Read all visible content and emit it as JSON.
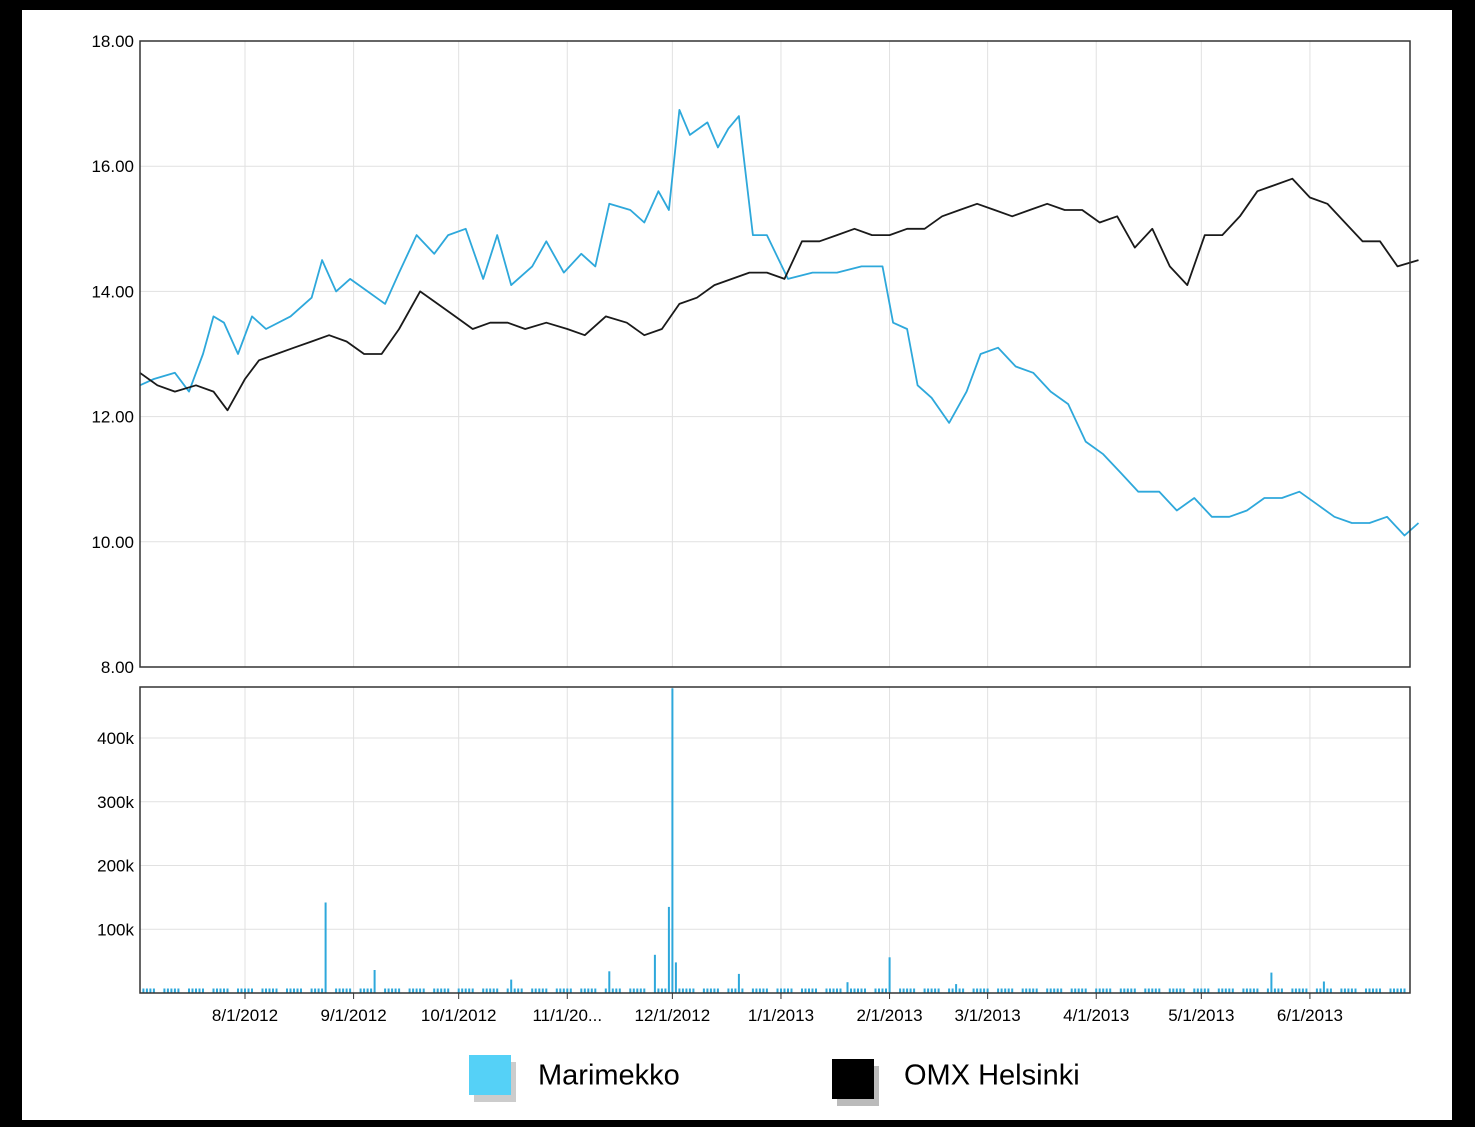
{
  "chart_data": [
    {
      "type": "line",
      "title": "",
      "xlabel": "",
      "ylabel": "",
      "ylim": [
        8,
        18
      ],
      "y_ticks": [
        "8.00",
        "10.00",
        "12.00",
        "14.00",
        "16.00",
        "18.00"
      ],
      "grid": true,
      "series": [
        {
          "name": "Marimekko",
          "color": "#2ea8db",
          "points": [
            [
              "2012-07-02",
              12.5
            ],
            [
              "2012-07-06",
              12.6
            ],
            [
              "2012-07-12",
              12.7
            ],
            [
              "2012-07-16",
              12.4
            ],
            [
              "2012-07-20",
              13.0
            ],
            [
              "2012-07-23",
              13.6
            ],
            [
              "2012-07-26",
              13.5
            ],
            [
              "2012-07-30",
              13.0
            ],
            [
              "2012-08-03",
              13.6
            ],
            [
              "2012-08-07",
              13.4
            ],
            [
              "2012-08-14",
              13.6
            ],
            [
              "2012-08-20",
              13.9
            ],
            [
              "2012-08-23",
              14.5
            ],
            [
              "2012-08-27",
              14.0
            ],
            [
              "2012-08-31",
              14.2
            ],
            [
              "2012-09-05",
              14.0
            ],
            [
              "2012-09-10",
              13.8
            ],
            [
              "2012-09-14",
              14.3
            ],
            [
              "2012-09-19",
              14.9
            ],
            [
              "2012-09-24",
              14.6
            ],
            [
              "2012-09-28",
              14.9
            ],
            [
              "2012-10-03",
              15.0
            ],
            [
              "2012-10-08",
              14.2
            ],
            [
              "2012-10-12",
              14.9
            ],
            [
              "2012-10-16",
              14.1
            ],
            [
              "2012-10-22",
              14.4
            ],
            [
              "2012-10-26",
              14.8
            ],
            [
              "2012-10-31",
              14.3
            ],
            [
              "2012-11-05",
              14.6
            ],
            [
              "2012-11-09",
              14.4
            ],
            [
              "2012-11-13",
              15.4
            ],
            [
              "2012-11-19",
              15.3
            ],
            [
              "2012-11-23",
              15.1
            ],
            [
              "2012-11-27",
              15.6
            ],
            [
              "2012-11-30",
              15.3
            ],
            [
              "2012-12-03",
              16.9
            ],
            [
              "2012-12-06",
              16.5
            ],
            [
              "2012-12-11",
              16.7
            ],
            [
              "2012-12-14",
              16.3
            ],
            [
              "2012-12-17",
              16.6
            ],
            [
              "2012-12-20",
              16.8
            ],
            [
              "2012-12-24",
              14.9
            ],
            [
              "2012-12-28",
              14.9
            ],
            [
              "2013-01-03",
              14.2
            ],
            [
              "2013-01-10",
              14.3
            ],
            [
              "2013-01-17",
              14.3
            ],
            [
              "2013-01-24",
              14.4
            ],
            [
              "2013-01-30",
              14.4
            ],
            [
              "2013-02-02",
              13.5
            ],
            [
              "2013-02-06",
              13.4
            ],
            [
              "2013-02-09",
              12.5
            ],
            [
              "2013-02-13",
              12.3
            ],
            [
              "2013-02-18",
              11.9
            ],
            [
              "2013-02-23",
              12.4
            ],
            [
              "2013-02-27",
              13.0
            ],
            [
              "2013-03-04",
              13.1
            ],
            [
              "2013-03-09",
              12.8
            ],
            [
              "2013-03-14",
              12.7
            ],
            [
              "2013-03-19",
              12.4
            ],
            [
              "2013-03-24",
              12.2
            ],
            [
              "2013-03-29",
              11.6
            ],
            [
              "2013-04-03",
              11.4
            ],
            [
              "2013-04-08",
              11.1
            ],
            [
              "2013-04-13",
              10.8
            ],
            [
              "2013-04-19",
              10.8
            ],
            [
              "2013-04-24",
              10.5
            ],
            [
              "2013-04-29",
              10.7
            ],
            [
              "2013-05-04",
              10.4
            ],
            [
              "2013-05-09",
              10.4
            ],
            [
              "2013-05-14",
              10.5
            ],
            [
              "2013-05-19",
              10.7
            ],
            [
              "2013-05-24",
              10.7
            ],
            [
              "2013-05-29",
              10.8
            ],
            [
              "2013-06-03",
              10.6
            ],
            [
              "2013-06-08",
              10.4
            ],
            [
              "2013-06-13",
              10.3
            ],
            [
              "2013-06-18",
              10.3
            ],
            [
              "2013-06-23",
              10.4
            ],
            [
              "2013-06-28",
              10.1
            ],
            [
              "2013-07-02",
              10.3
            ]
          ]
        },
        {
          "name": "OMX Helsinki",
          "color": "#1a1a1a",
          "points": [
            [
              "2012-07-02",
              12.7
            ],
            [
              "2012-07-07",
              12.5
            ],
            [
              "2012-07-12",
              12.4
            ],
            [
              "2012-07-18",
              12.5
            ],
            [
              "2012-07-23",
              12.4
            ],
            [
              "2012-07-27",
              12.1
            ],
            [
              "2012-08-01",
              12.6
            ],
            [
              "2012-08-05",
              12.9
            ],
            [
              "2012-08-10",
              13.0
            ],
            [
              "2012-08-15",
              13.1
            ],
            [
              "2012-08-20",
              13.2
            ],
            [
              "2012-08-25",
              13.3
            ],
            [
              "2012-08-30",
              13.2
            ],
            [
              "2012-09-04",
              13.0
            ],
            [
              "2012-09-09",
              13.0
            ],
            [
              "2012-09-14",
              13.4
            ],
            [
              "2012-09-20",
              14.0
            ],
            [
              "2012-09-25",
              13.8
            ],
            [
              "2012-09-30",
              13.6
            ],
            [
              "2012-10-05",
              13.4
            ],
            [
              "2012-10-10",
              13.5
            ],
            [
              "2012-10-15",
              13.5
            ],
            [
              "2012-10-20",
              13.4
            ],
            [
              "2012-10-26",
              13.5
            ],
            [
              "2012-11-01",
              13.4
            ],
            [
              "2012-11-06",
              13.3
            ],
            [
              "2012-11-12",
              13.6
            ],
            [
              "2012-11-18",
              13.5
            ],
            [
              "2012-11-23",
              13.3
            ],
            [
              "2012-11-28",
              13.4
            ],
            [
              "2012-12-03",
              13.8
            ],
            [
              "2012-12-08",
              13.9
            ],
            [
              "2012-12-13",
              14.1
            ],
            [
              "2012-12-18",
              14.2
            ],
            [
              "2012-12-23",
              14.3
            ],
            [
              "2012-12-28",
              14.3
            ],
            [
              "2013-01-02",
              14.2
            ],
            [
              "2013-01-07",
              14.8
            ],
            [
              "2013-01-12",
              14.8
            ],
            [
              "2013-01-17",
              14.9
            ],
            [
              "2013-01-22",
              15.0
            ],
            [
              "2013-01-27",
              14.9
            ],
            [
              "2013-02-01",
              14.9
            ],
            [
              "2013-02-06",
              15.0
            ],
            [
              "2013-02-11",
              15.0
            ],
            [
              "2013-02-16",
              15.2
            ],
            [
              "2013-02-21",
              15.3
            ],
            [
              "2013-02-26",
              15.4
            ],
            [
              "2013-03-03",
              15.3
            ],
            [
              "2013-03-08",
              15.2
            ],
            [
              "2013-03-13",
              15.3
            ],
            [
              "2013-03-18",
              15.4
            ],
            [
              "2013-03-23",
              15.3
            ],
            [
              "2013-03-28",
              15.3
            ],
            [
              "2013-04-02",
              15.1
            ],
            [
              "2013-04-07",
              15.2
            ],
            [
              "2013-04-12",
              14.7
            ],
            [
              "2013-04-17",
              15.0
            ],
            [
              "2013-04-22",
              14.4
            ],
            [
              "2013-04-27",
              14.1
            ],
            [
              "2013-05-02",
              14.9
            ],
            [
              "2013-05-07",
              14.9
            ],
            [
              "2013-05-12",
              15.2
            ],
            [
              "2013-05-17",
              15.6
            ],
            [
              "2013-05-22",
              15.7
            ],
            [
              "2013-05-27",
              15.8
            ],
            [
              "2013-06-01",
              15.5
            ],
            [
              "2013-06-06",
              15.4
            ],
            [
              "2013-06-11",
              15.1
            ],
            [
              "2013-06-16",
              14.8
            ],
            [
              "2013-06-21",
              14.8
            ],
            [
              "2013-06-26",
              14.4
            ],
            [
              "2013-07-02",
              14.5
            ]
          ]
        }
      ]
    },
    {
      "type": "bar",
      "title": "",
      "xlabel": "",
      "ylabel": "",
      "ylim": [
        0,
        480000
      ],
      "y_ticks": [
        "100k",
        "200k",
        "300k",
        "400k"
      ],
      "x_ticks": [
        "8/1/2012",
        "9/1/2012",
        "10/1/2012",
        "11/1/20...",
        "12/1/2012",
        "1/1/2013",
        "2/1/2013",
        "3/1/2013",
        "4/1/2013",
        "5/1/2013",
        "6/1/2013"
      ],
      "grid": true,
      "baseline_volume": 7000,
      "series": [
        {
          "name": "Marimekko",
          "color": "#2ea8db",
          "spikes": [
            [
              "2012-08-24",
              142000
            ],
            [
              "2012-09-07",
              36000
            ],
            [
              "2012-10-16",
              21000
            ],
            [
              "2012-11-13",
              34000
            ],
            [
              "2012-11-26",
              60000
            ],
            [
              "2012-11-30",
              135000
            ],
            [
              "2012-12-01",
              478000
            ],
            [
              "2012-12-02",
              48000
            ],
            [
              "2012-12-20",
              30000
            ],
            [
              "2013-01-20",
              17000
            ],
            [
              "2013-02-01",
              56000
            ],
            [
              "2013-02-20",
              14000
            ],
            [
              "2013-05-21",
              32000
            ],
            [
              "2013-06-05",
              18000
            ]
          ]
        }
      ]
    }
  ],
  "legend": {
    "placement": "bottom",
    "items": [
      {
        "label": "Marimekko",
        "color": "#55d1f7"
      },
      {
        "label": "OMX Helsinki",
        "color": "#000000"
      }
    ]
  }
}
